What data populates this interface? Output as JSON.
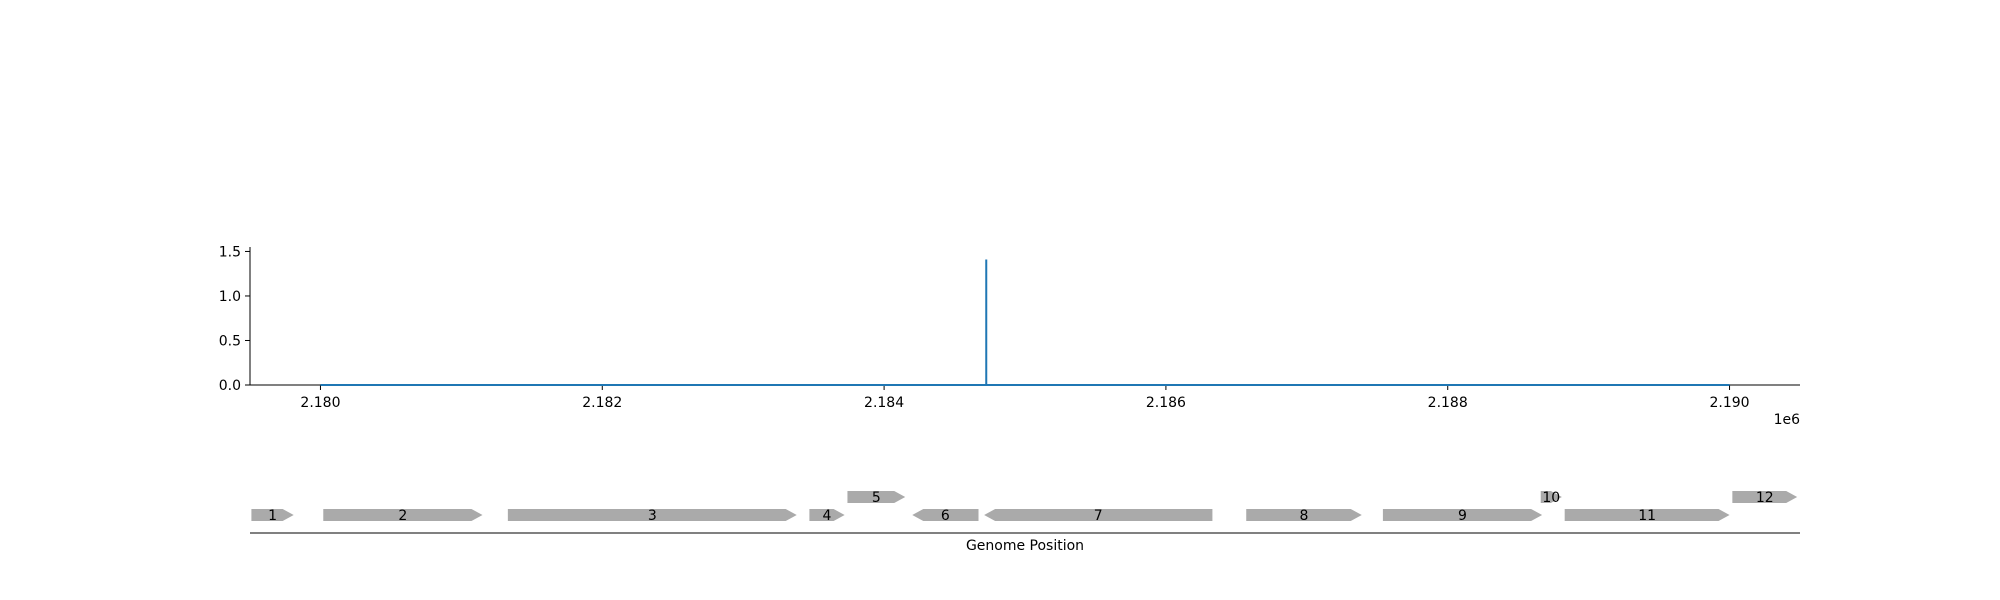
{
  "chart_data": [
    {
      "type": "line",
      "title": "",
      "xlabel": "",
      "ylabel": "",
      "x_offset_label": "1e6",
      "xlim": [
        2179500,
        2190500
      ],
      "ylim": [
        0,
        1.55
      ],
      "xticks": [
        2180000,
        2182000,
        2184000,
        2186000,
        2188000,
        2190000
      ],
      "xtick_labels": [
        "2.180",
        "2.182",
        "2.184",
        "2.186",
        "2.188",
        "2.190"
      ],
      "yticks": [
        0.0,
        0.5,
        1.0,
        1.5
      ],
      "ytick_labels": [
        "0.0",
        "0.5",
        "1.0",
        "1.5"
      ],
      "grid": false,
      "series": [
        {
          "color": "#1f77b4",
          "x": [
            2180000,
            2184725,
            2184725,
            2184725,
            2190000
          ],
          "y": [
            0,
            0,
            1.41,
            0,
            0
          ]
        }
      ]
    },
    {
      "type": "gene-track",
      "xlabel": "Genome Position",
      "color": "#aaaaaa",
      "genes": [
        {
          "label": "1",
          "start": 2179510,
          "end": 2179810,
          "strand": 1,
          "row": 0
        },
        {
          "label": "2",
          "start": 2180020,
          "end": 2181150,
          "strand": 1,
          "row": 0
        },
        {
          "label": "3",
          "start": 2181330,
          "end": 2183380,
          "strand": 1,
          "row": 0
        },
        {
          "label": "4",
          "start": 2183470,
          "end": 2183720,
          "strand": 1,
          "row": 0
        },
        {
          "label": "5",
          "start": 2183740,
          "end": 2184150,
          "strand": 1,
          "row": 1
        },
        {
          "label": "6",
          "start": 2184200,
          "end": 2184670,
          "strand": -1,
          "row": 0
        },
        {
          "label": "7",
          "start": 2184710,
          "end": 2186330,
          "strand": -1,
          "row": 0
        },
        {
          "label": "8",
          "start": 2186570,
          "end": 2187390,
          "strand": 1,
          "row": 0
        },
        {
          "label": "9",
          "start": 2187540,
          "end": 2188670,
          "strand": 1,
          "row": 0
        },
        {
          "label": "10",
          "start": 2188660,
          "end": 2188810,
          "strand": 1,
          "row": 1
        },
        {
          "label": "11",
          "start": 2188830,
          "end": 2190000,
          "strand": 1,
          "row": 0
        },
        {
          "label": "12",
          "start": 2190020,
          "end": 2190480,
          "strand": 1,
          "row": 1
        }
      ]
    }
  ]
}
